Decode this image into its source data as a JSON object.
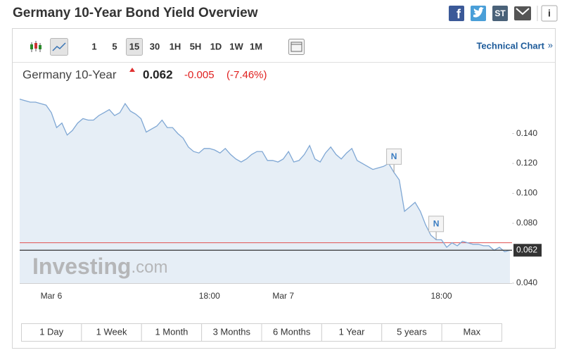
{
  "header": {
    "title": "Germany 10-Year Bond Yield Overview",
    "share_icons": [
      "f",
      "ST",
      "i"
    ]
  },
  "toolbar": {
    "intervals": [
      "1",
      "5",
      "15",
      "30",
      "1H",
      "5H",
      "1D",
      "1W",
      "1M"
    ],
    "selected": "15",
    "link": "Technical Chart",
    "link_arrow": "»"
  },
  "quote": {
    "name": "Germany 10-Year",
    "price": "0.062",
    "change": "-0.005",
    "change_pct": "(-7.46%)"
  },
  "watermark": {
    "brand": "Investing",
    "suffix": ".com"
  },
  "ranges": [
    "1 Day",
    "1 Week",
    "1 Month",
    "3 Months",
    "6 Months",
    "1 Year",
    "5 years",
    "Max"
  ],
  "chart_data": {
    "type": "area",
    "color": "#7fa7d4",
    "fill": "#e6eef6",
    "categories": [
      null,
      null,
      null,
      null,
      null,
      null,
      "Mar 6",
      null,
      null,
      null,
      null,
      null,
      null,
      null,
      null,
      null,
      null,
      null,
      null,
      null,
      null,
      null,
      null,
      null,
      null,
      null,
      null,
      null,
      null,
      null,
      null,
      null,
      null,
      null,
      null,
      null,
      "18:00",
      null,
      null,
      null,
      null,
      null,
      null,
      null,
      null,
      null,
      null,
      null,
      null,
      null,
      "Mar 7",
      null,
      null,
      null,
      null,
      null,
      null,
      null,
      null,
      null,
      null,
      null,
      null,
      null,
      null,
      null,
      null,
      null,
      null,
      null,
      null,
      null,
      null,
      null,
      null,
      null,
      null,
      null,
      null,
      null,
      "18:00",
      null,
      null,
      null,
      null,
      null,
      null,
      null,
      null,
      null,
      null,
      null,
      null,
      null
    ],
    "values": [
      0.163,
      0.162,
      0.161,
      0.161,
      0.16,
      0.159,
      0.154,
      0.144,
      0.147,
      0.139,
      0.142,
      0.147,
      0.15,
      0.149,
      0.149,
      0.152,
      0.154,
      0.156,
      0.152,
      0.154,
      0.16,
      0.155,
      0.153,
      0.15,
      0.141,
      0.143,
      0.145,
      0.149,
      0.144,
      0.144,
      0.14,
      0.137,
      0.131,
      0.128,
      0.127,
      0.13,
      0.13,
      0.129,
      0.127,
      0.13,
      0.126,
      0.123,
      0.121,
      0.123,
      0.126,
      0.128,
      0.128,
      0.122,
      0.122,
      0.121,
      0.123,
      0.128,
      0.121,
      0.122,
      0.126,
      0.132,
      0.123,
      0.121,
      0.127,
      0.131,
      0.126,
      0.123,
      0.127,
      0.13,
      0.122,
      0.12,
      0.118,
      0.116,
      0.117,
      0.118,
      0.12,
      0.114,
      0.109,
      0.088,
      0.091,
      0.094,
      0.088,
      0.079,
      0.072,
      0.069,
      0.069,
      0.064,
      0.067,
      0.065,
      0.068,
      0.067,
      0.066,
      0.066,
      0.065,
      0.065,
      0.062,
      0.064,
      0.061,
      0.062
    ],
    "ylim": [
      0.04,
      0.169
    ],
    "yticks": [
      {
        "value": 0.04,
        "label": "0.040"
      },
      {
        "value": 0.08,
        "label": "0.080"
      },
      {
        "value": 0.1,
        "label": "0.100"
      },
      {
        "value": 0.12,
        "label": "0.120"
      },
      {
        "value": 0.14,
        "label": "0.140"
      }
    ],
    "current": 0.062,
    "current_color": "#333333",
    "previous_close": 0.067,
    "previous_close_color": "#e05050",
    "annotations": [
      {
        "text": "N",
        "index": 71
      },
      {
        "text": "N",
        "index": 79
      }
    ]
  }
}
